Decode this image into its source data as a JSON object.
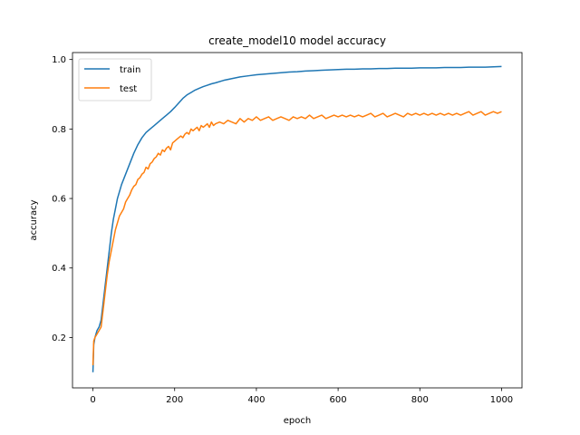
{
  "chart_data": {
    "type": "line",
    "title": "create_model10 model accuracy",
    "xlabel": "epoch",
    "ylabel": "accuracy",
    "xlim": [
      -50,
      1050
    ],
    "ylim": [
      0.055,
      1.02
    ],
    "xticks": [
      0,
      200,
      400,
      600,
      800,
      1000
    ],
    "yticks": [
      0.2,
      0.4,
      0.6,
      0.8,
      1.0
    ],
    "ytick_labels": [
      "0.2",
      "0.4",
      "0.6",
      "0.8",
      "1.0"
    ],
    "grid": false,
    "legend_position": "top-left",
    "series": [
      {
        "name": "train",
        "color": "#1f77b4",
        "x": [
          0,
          2,
          5,
          10,
          15,
          20,
          25,
          30,
          35,
          40,
          45,
          50,
          60,
          70,
          80,
          90,
          100,
          110,
          120,
          130,
          140,
          150,
          160,
          170,
          180,
          190,
          200,
          210,
          220,
          230,
          240,
          250,
          260,
          270,
          280,
          290,
          300,
          320,
          340,
          360,
          380,
          400,
          420,
          440,
          460,
          480,
          500,
          520,
          540,
          560,
          580,
          600,
          620,
          640,
          660,
          680,
          700,
          720,
          740,
          760,
          780,
          800,
          820,
          840,
          860,
          880,
          900,
          920,
          940,
          960,
          980,
          1000
        ],
        "y": [
          0.1,
          0.18,
          0.2,
          0.22,
          0.23,
          0.25,
          0.3,
          0.35,
          0.4,
          0.45,
          0.5,
          0.54,
          0.6,
          0.64,
          0.67,
          0.7,
          0.73,
          0.755,
          0.775,
          0.79,
          0.8,
          0.81,
          0.82,
          0.83,
          0.84,
          0.85,
          0.862,
          0.875,
          0.888,
          0.898,
          0.905,
          0.912,
          0.917,
          0.922,
          0.926,
          0.93,
          0.933,
          0.94,
          0.945,
          0.95,
          0.953,
          0.956,
          0.958,
          0.96,
          0.962,
          0.964,
          0.965,
          0.967,
          0.968,
          0.969,
          0.97,
          0.971,
          0.972,
          0.972,
          0.973,
          0.973,
          0.974,
          0.974,
          0.975,
          0.975,
          0.975,
          0.976,
          0.976,
          0.976,
          0.977,
          0.977,
          0.977,
          0.978,
          0.978,
          0.978,
          0.979,
          0.98
        ]
      },
      {
        "name": "test",
        "color": "#ff7f0e",
        "x": [
          0,
          2,
          5,
          10,
          15,
          20,
          25,
          30,
          35,
          40,
          45,
          50,
          55,
          60,
          65,
          70,
          75,
          80,
          85,
          90,
          95,
          100,
          105,
          110,
          115,
          120,
          125,
          130,
          135,
          140,
          145,
          150,
          155,
          160,
          165,
          170,
          175,
          180,
          185,
          190,
          195,
          200,
          205,
          210,
          215,
          220,
          225,
          230,
          235,
          240,
          245,
          250,
          255,
          260,
          265,
          270,
          275,
          280,
          285,
          290,
          295,
          300,
          310,
          320,
          330,
          340,
          350,
          360,
          370,
          380,
          390,
          400,
          410,
          420,
          430,
          440,
          450,
          460,
          470,
          480,
          490,
          500,
          510,
          520,
          530,
          540,
          550,
          560,
          570,
          580,
          590,
          600,
          610,
          620,
          630,
          640,
          650,
          660,
          670,
          680,
          690,
          700,
          710,
          720,
          730,
          740,
          750,
          760,
          770,
          780,
          790,
          800,
          810,
          820,
          830,
          840,
          850,
          860,
          870,
          880,
          890,
          900,
          910,
          920,
          930,
          940,
          950,
          960,
          970,
          980,
          990,
          1000
        ],
        "y": [
          0.12,
          0.19,
          0.2,
          0.21,
          0.22,
          0.23,
          0.28,
          0.33,
          0.38,
          0.42,
          0.45,
          0.48,
          0.51,
          0.53,
          0.55,
          0.56,
          0.57,
          0.59,
          0.6,
          0.61,
          0.625,
          0.635,
          0.64,
          0.655,
          0.66,
          0.67,
          0.675,
          0.69,
          0.685,
          0.7,
          0.705,
          0.715,
          0.72,
          0.73,
          0.725,
          0.74,
          0.735,
          0.745,
          0.75,
          0.74,
          0.76,
          0.765,
          0.77,
          0.775,
          0.78,
          0.775,
          0.785,
          0.79,
          0.785,
          0.8,
          0.795,
          0.8,
          0.805,
          0.795,
          0.81,
          0.805,
          0.81,
          0.815,
          0.805,
          0.82,
          0.81,
          0.815,
          0.82,
          0.815,
          0.825,
          0.82,
          0.815,
          0.83,
          0.82,
          0.83,
          0.825,
          0.835,
          0.825,
          0.83,
          0.835,
          0.825,
          0.83,
          0.835,
          0.83,
          0.825,
          0.835,
          0.83,
          0.835,
          0.83,
          0.84,
          0.83,
          0.835,
          0.84,
          0.83,
          0.835,
          0.84,
          0.835,
          0.84,
          0.835,
          0.84,
          0.835,
          0.84,
          0.835,
          0.84,
          0.845,
          0.835,
          0.84,
          0.845,
          0.835,
          0.84,
          0.845,
          0.84,
          0.835,
          0.845,
          0.84,
          0.845,
          0.84,
          0.845,
          0.84,
          0.845,
          0.84,
          0.845,
          0.84,
          0.845,
          0.84,
          0.845,
          0.84,
          0.845,
          0.85,
          0.84,
          0.845,
          0.85,
          0.84,
          0.845,
          0.85,
          0.845,
          0.85
        ]
      }
    ]
  }
}
